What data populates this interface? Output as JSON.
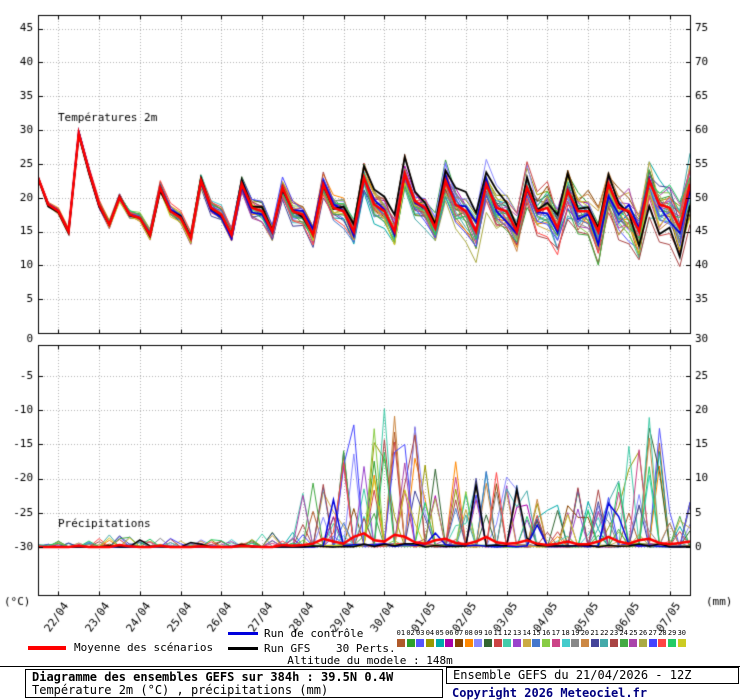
{
  "chart_data": {
    "type": "line",
    "panel_labels": {
      "temperature": "Températures 2m",
      "precipitation": "Précipitations"
    },
    "units": {
      "left": "(°C)",
      "right": "(mm)"
    },
    "x": {
      "tick_labels": [
        "22/04",
        "23/04",
        "24/04",
        "25/04",
        "26/04",
        "27/04",
        "28/04",
        "29/04",
        "30/04",
        "01/05",
        "02/05",
        "03/05",
        "04/05",
        "05/05",
        "06/05",
        "07/05"
      ],
      "hours_total": 384,
      "step_hours": 6,
      "first_tick_hour": 12,
      "tick_interval_hours": 24
    },
    "temp_axis": {
      "min": 0,
      "max": 47,
      "grid_values": [
        5,
        10,
        15,
        20,
        25,
        30,
        35,
        40,
        45
      ],
      "left_labels": [
        45,
        40,
        35,
        30,
        25,
        20,
        15,
        10,
        5
      ],
      "right_labels": [
        75,
        70,
        65,
        60,
        55,
        50,
        45,
        40,
        35
      ]
    },
    "boundary_labels": {
      "left": "0",
      "right": "30"
    },
    "precip_axis": {
      "min_mm": -7,
      "max_mm": 29.5,
      "grid_mm": [
        0,
        5,
        10,
        15,
        20,
        25
      ],
      "left_labels": [
        -5,
        -10,
        -15,
        -20,
        -25,
        -30
      ],
      "right_labels": [
        25,
        20,
        15,
        10,
        5,
        0
      ]
    },
    "series": {
      "mean": {
        "name": "Moyenne des scénarios",
        "color": "#ff0000",
        "temp": [
          23,
          19,
          18,
          15,
          29.5,
          24,
          19,
          16,
          20,
          17.5,
          17,
          14.5,
          21.5,
          18,
          17,
          14,
          22.5,
          18.5,
          17.5,
          14.5,
          22,
          18.5,
          18,
          15,
          21.5,
          18,
          17.5,
          14.5,
          22,
          18.5,
          18,
          15,
          23,
          19,
          18,
          15,
          23.5,
          19.5,
          18.5,
          15.5,
          22.5,
          19,
          18,
          15,
          22,
          18.5,
          18,
          15,
          21.5,
          18,
          18.5,
          15.5,
          21,
          18,
          18,
          15,
          22,
          18.5,
          18,
          15,
          22.5,
          19,
          18.5,
          15.5,
          22
        ],
        "precip": [
          0,
          0,
          0,
          0,
          0.2,
          0,
          0,
          0,
          0.3,
          0.1,
          0,
          0,
          0.2,
          0,
          0,
          0,
          0.1,
          0,
          0,
          0,
          0.2,
          0.1,
          0,
          0,
          0.3,
          0.2,
          0.3,
          0.5,
          1.2,
          0.8,
          0.5,
          1.5,
          2,
          1,
          0.8,
          1.8,
          1.5,
          0.7,
          0.5,
          1,
          1.2,
          0.6,
          0.4,
          0.8,
          1.5,
          0.7,
          0.5,
          0.6,
          1,
          0.5,
          0.3,
          0.5,
          0.8,
          0.4,
          0.4,
          0.8,
          1.5,
          0.8,
          0.5,
          1,
          1.2,
          0.6,
          0.4,
          0.6,
          0.8
        ]
      },
      "control": {
        "name": "Run de contrôle",
        "color": "#0000dd",
        "seed": 11,
        "amp": 0.75
      },
      "gfs": {
        "name": "Run GFS",
        "color": "#000000",
        "seed": 23,
        "amp": 0.85
      },
      "perturbations": {
        "label": "30 Perts.",
        "count": 30,
        "seed": 7,
        "numbers": [
          "01",
          "02",
          "03",
          "04",
          "05",
          "06",
          "07",
          "08",
          "09",
          "10",
          "11",
          "12",
          "13",
          "14",
          "15",
          "16",
          "17",
          "18",
          "19",
          "20",
          "21",
          "22",
          "23",
          "24",
          "25",
          "26",
          "27",
          "28",
          "29",
          "30"
        ],
        "colors": [
          "#b05a2a",
          "#2ca02c",
          "#5555ff",
          "#999900",
          "#00aaaa",
          "#aa00aa",
          "#884400",
          "#ff8800",
          "#8888ff",
          "#336633",
          "#cc4444",
          "#44ccaa",
          "#9944cc",
          "#ccaa44",
          "#4477cc",
          "#88cc44",
          "#cc4488",
          "#44cccc",
          "#888888",
          "#cc8844",
          "#444499",
          "#44aaaa",
          "#aa4444",
          "#44aa44",
          "#aa44aa",
          "#aaaa44",
          "#4444ff",
          "#ff4444",
          "#22cc66",
          "#cccc22"
        ]
      }
    },
    "precip_envelope_per_day": [
      0.2,
      0.4,
      0.8,
      0.6,
      0.5,
      0.5,
      1,
      4.5,
      8,
      9.5,
      6,
      5,
      5,
      4,
      4.5,
      9,
      3
    ]
  },
  "legend": {
    "altitude": "Altitude du modele : 148m"
  },
  "footer": {
    "title": "Diagramme des ensembles GEFS sur 384h : 39.5N 0.4W",
    "subtitle": "Température 2m (°C) , précipitations (mm)",
    "run_info": "Ensemble GEFS du 21/04/2026 - 12Z",
    "copyright": "Copyright 2026 Meteociel.fr"
  }
}
